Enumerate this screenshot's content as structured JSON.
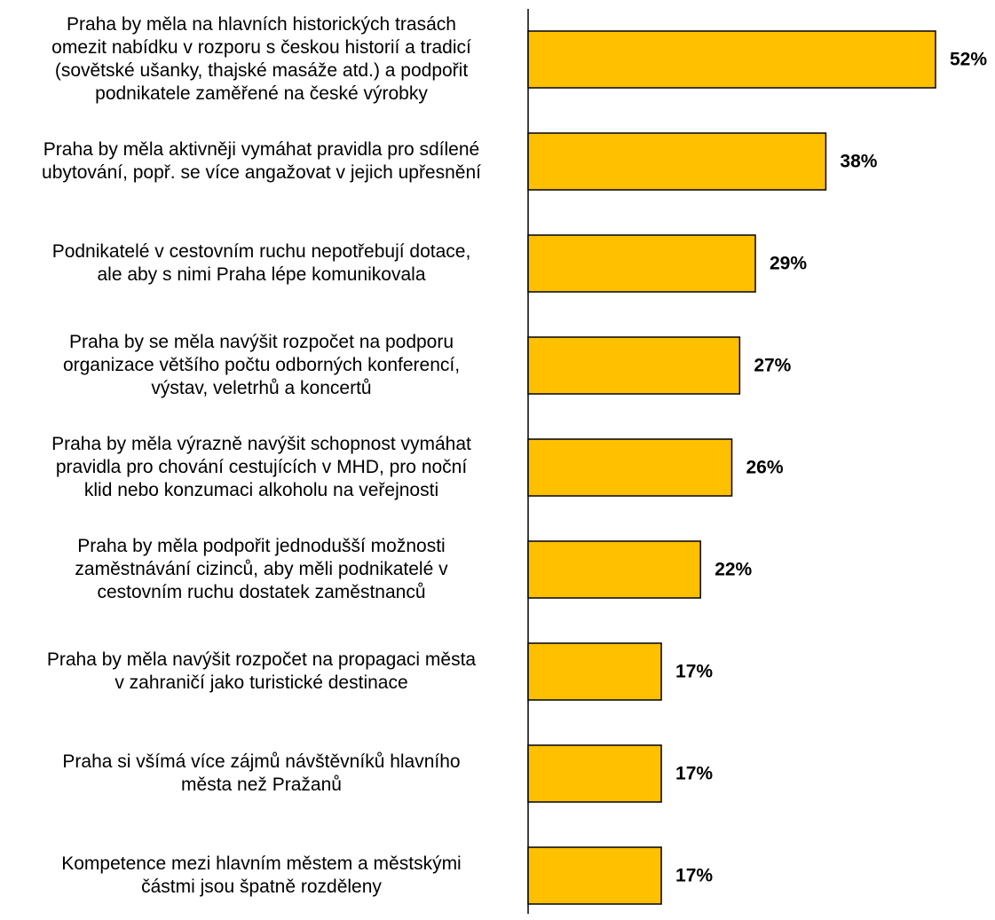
{
  "chart_data": {
    "type": "bar",
    "orientation": "horizontal",
    "categories": [
      "Praha by měla na hlavních historických trasách\nomezit nabídku v rozporu s českou historií a tradicí\n(sovětské ušanky, thajské masáže atd.) a podpořit\npodnikatele zaměřené na české výrobky",
      "Praha by měla aktivněji vymáhat pravidla pro sdílené\nubytování, popř. se více angažovat v jejich upřesnění",
      "Podnikatelé v cestovním ruchu nepotřebují dotace,\nale aby s nimi Praha lépe komunikovala",
      "Praha by se měla navýšit rozpočet na podporu\norganizace většího počtu odborných konferencí,\nvýstav, veletrhů a koncertů",
      "Praha by měla výrazně navýšit schopnost vymáhat\npravidla pro chování cestujících v MHD, pro noční\nklid nebo konzumaci alkoholu na veřejnosti",
      "Praha by měla podpořit jednodušší možnosti\nzaměstnávání cizinců, aby měli podnikatelé v\ncestovním ruchu dostatek zaměstnanců",
      "Praha by měla navýšit rozpočet na propagaci města\nv zahraničí jako turistické destinace",
      "Praha si všímá více zájmů návštěvníků hlavního\nměsta než Pražanů",
      "Kompetence mezi hlavním městem a městskými\nčástmi jsou špatně rozděleny"
    ],
    "values": [
      52,
      38,
      29,
      27,
      26,
      22,
      17,
      17,
      17
    ],
    "value_labels": [
      "52%",
      "38%",
      "29%",
      "27%",
      "26%",
      "22%",
      "17%",
      "17%",
      "17%"
    ],
    "bar_color": "#FFC000",
    "bar_stroke": "#000000",
    "xlim": [
      0,
      52
    ],
    "grid": false,
    "legend": "none"
  }
}
